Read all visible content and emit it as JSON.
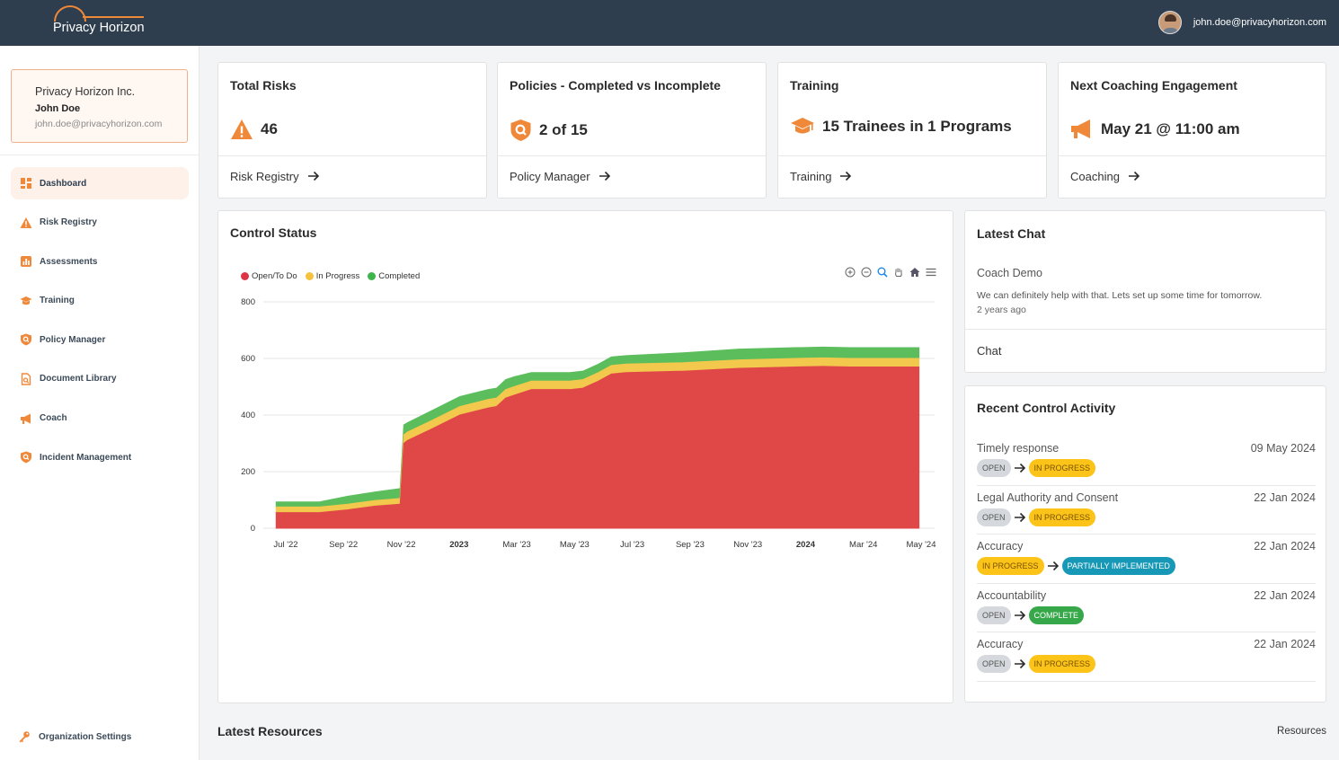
{
  "brand": {
    "name": "Privacy Horizon",
    "accent": "#f0883a",
    "topbar_color": "#2e3e4e"
  },
  "header": {
    "user_email": "john.doe@privacyhorizon.com"
  },
  "org": {
    "name": "Privacy Horizon Inc.",
    "user": "John Doe",
    "email": "john.doe@privacyhorizon.com"
  },
  "nav": [
    {
      "label": "Dashboard",
      "icon": "dashboard-icon",
      "active": true
    },
    {
      "label": "Risk Registry",
      "icon": "warning-icon"
    },
    {
      "label": "Assessments",
      "icon": "bar-chart-icon"
    },
    {
      "label": "Training",
      "icon": "graduation-cap-icon"
    },
    {
      "label": "Policy Manager",
      "icon": "shield-search-icon"
    },
    {
      "label": "Document Library",
      "icon": "document-search-icon"
    },
    {
      "label": "Coach",
      "icon": "megaphone-icon"
    },
    {
      "label": "Incident Management",
      "icon": "shield-search-icon"
    }
  ],
  "org_settings": {
    "label": "Organization Settings",
    "icon": "key-icon"
  },
  "stats": [
    {
      "title": "Total Risks",
      "value": "46",
      "icon": "warning-icon",
      "link": "Risk Registry"
    },
    {
      "title": "Policies - Completed vs Incomplete",
      "value": "2 of 15",
      "icon": "shield-search-icon",
      "link": "Policy Manager"
    },
    {
      "title": "Training",
      "value": "15 Trainees in 1 Programs",
      "icon": "graduation-cap-icon",
      "link": "Training"
    },
    {
      "title": "Next Coaching Engagement",
      "value": "May 21 @ 11:00 am",
      "icon": "megaphone-icon",
      "link": "Coaching"
    }
  ],
  "control_status": {
    "title": "Control Status",
    "toolbar": [
      "zoom-in-icon",
      "zoom-out-icon",
      "magnifier-icon",
      "pan-hand-icon",
      "home-icon",
      "menu-icon"
    ]
  },
  "chart_data": {
    "type": "area",
    "stacked": true,
    "title": "Control Status",
    "x_labels": [
      "Jul '22",
      "Sep '22",
      "Nov '22",
      "2023",
      "Mar '23",
      "May '23",
      "Jul '23",
      "Sep '23",
      "Nov '23",
      "2024",
      "Mar '24",
      "May '24"
    ],
    "x_bold_labels": [
      "2023",
      "2024"
    ],
    "yticks": [
      0,
      200,
      400,
      600,
      800
    ],
    "ylim": [
      0,
      800
    ],
    "grid": true,
    "legend_position": "top-left",
    "x": [
      "2022-06-15",
      "2022-07-01",
      "2022-08-01",
      "2022-09-01",
      "2022-10-01",
      "2022-10-28",
      "2022-11-01",
      "2022-11-05",
      "2022-12-01",
      "2023-01-01",
      "2023-02-01",
      "2023-02-10",
      "2023-02-20",
      "2023-03-01",
      "2023-03-20",
      "2023-04-01",
      "2023-05-01",
      "2023-05-15",
      "2023-06-01",
      "2023-06-15",
      "2023-07-01",
      "2023-09-01",
      "2023-11-01",
      "2024-01-01",
      "2024-02-01",
      "2024-03-01",
      "2024-05-15"
    ],
    "series": [
      {
        "name": "Open/To Do",
        "color": "#e04848",
        "values": [
          55,
          55,
          55,
          65,
          78,
          85,
          300,
          310,
          350,
          400,
          425,
          430,
          460,
          470,
          490,
          490,
          490,
          495,
          520,
          545,
          550,
          555,
          565,
          570,
          572,
          570,
          570
        ]
      },
      {
        "name": "In Progress",
        "color": "#f2c94c",
        "values": [
          20,
          20,
          20,
          20,
          20,
          20,
          30,
          30,
          30,
          30,
          30,
          30,
          30,
          30,
          30,
          30,
          30,
          30,
          30,
          30,
          30,
          30,
          30,
          30,
          30,
          30,
          30
        ]
      },
      {
        "name": "Completed",
        "color": "#5cbd5c",
        "values": [
          18,
          18,
          18,
          28,
          30,
          35,
          35,
          33,
          35,
          35,
          35,
          35,
          35,
          35,
          30,
          30,
          30,
          30,
          30,
          30,
          30,
          35,
          38,
          38,
          38,
          38,
          38
        ]
      }
    ]
  },
  "latest_chat": {
    "title": "Latest Chat",
    "author": "Coach Demo",
    "message": "We can definitely help with that. Lets set up some time for tomorrow.",
    "time": "2 years ago",
    "link": "Chat"
  },
  "recent_activity": {
    "title": "Recent Control Activity",
    "items": [
      {
        "name": "Timely response",
        "date": "09 May 2024",
        "from": "OPEN",
        "to": "IN PROGRESS"
      },
      {
        "name": "Legal Authority and Consent",
        "date": "22 Jan 2024",
        "from": "OPEN",
        "to": "IN PROGRESS"
      },
      {
        "name": "Accuracy",
        "date": "22 Jan 2024",
        "from": "IN PROGRESS",
        "to": "PARTIALLY IMPLEMENTED"
      },
      {
        "name": "Accountability",
        "date": "22 Jan 2024",
        "from": "OPEN",
        "to": "COMPLETE"
      },
      {
        "name": "Accuracy",
        "date": "22 Jan 2024",
        "from": "OPEN",
        "to": "IN PROGRESS"
      }
    ]
  },
  "latest_resources": {
    "title": "Latest Resources",
    "link": "Resources"
  }
}
